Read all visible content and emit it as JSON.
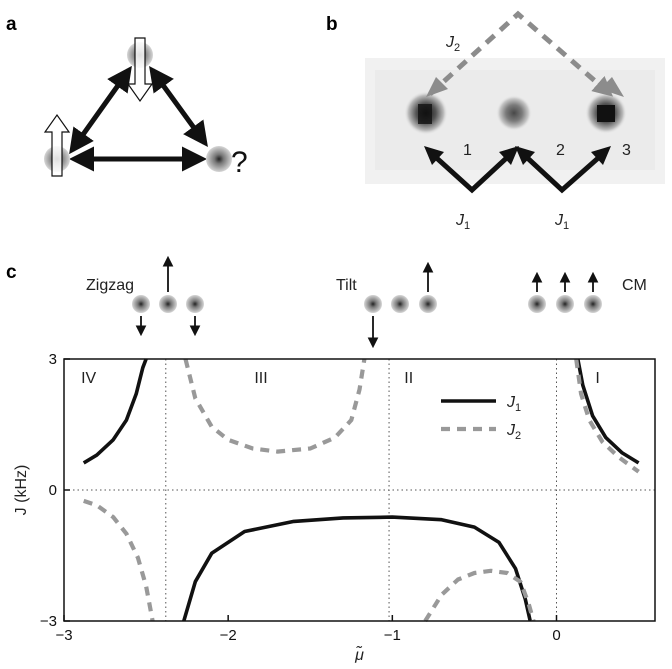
{
  "panels": {
    "a": {
      "letter": "a",
      "question": "?"
    },
    "b": {
      "letter": "b",
      "j2": "J",
      "j2_sub": "2",
      "site1": "1",
      "site2": "2",
      "site3": "3",
      "j1_left": "J",
      "j1_left_sub": "1",
      "j1_right": "J",
      "j1_right_sub": "1"
    },
    "c": {
      "letter": "c",
      "config_zigzag": "Zigzag",
      "config_tilt": "Tilt",
      "config_cm": "CM"
    }
  },
  "colors": {
    "j1_line": "#111111",
    "j2_line": "#999999",
    "ion": "#8a8a8a"
  },
  "chart_data": {
    "type": "line",
    "xlabel": "μ̃",
    "ylabel": "J (kHz)",
    "xlim": [
      -3,
      0.6
    ],
    "ylim": [
      -3,
      3
    ],
    "xticks": [
      "−3",
      "−2",
      "−1",
      "0"
    ],
    "xtick_values": [
      -3,
      -2,
      -1,
      0
    ],
    "yticks": [
      "−3",
      "0",
      "3"
    ],
    "ytick_values": [
      -3,
      0,
      3
    ],
    "regions": [
      {
        "label": "IV",
        "x": -2.85
      },
      {
        "label": "III",
        "x": -1.8
      },
      {
        "label": "II",
        "x": -0.9
      },
      {
        "label": "I",
        "x": 0.25
      }
    ],
    "dotted_vlines": [
      -2.38,
      -1.02,
      0
    ],
    "legend": [
      {
        "name": "J",
        "sub": "1",
        "style": "solid"
      },
      {
        "name": "J",
        "sub": "2",
        "style": "dashed"
      }
    ],
    "legend_position": "top-right",
    "series": [
      {
        "id": "J1",
        "name": "J1",
        "style": "solid",
        "segments": [
          [
            [
              -2.88,
              0.62
            ],
            [
              -2.8,
              0.8
            ],
            [
              -2.7,
              1.15
            ],
            [
              -2.62,
              1.6
            ],
            [
              -2.56,
              2.2
            ],
            [
              -2.52,
              2.8
            ],
            [
              -2.5,
              3.0
            ]
          ],
          [
            [
              -2.27,
              -3.0
            ],
            [
              -2.2,
              -2.1
            ],
            [
              -2.1,
              -1.45
            ],
            [
              -1.9,
              -0.95
            ],
            [
              -1.6,
              -0.72
            ],
            [
              -1.3,
              -0.64
            ],
            [
              -1.0,
              -0.62
            ],
            [
              -0.7,
              -0.68
            ],
            [
              -0.5,
              -0.85
            ],
            [
              -0.35,
              -1.2
            ],
            [
              -0.25,
              -1.8
            ],
            [
              -0.19,
              -2.5
            ],
            [
              -0.16,
              -3.0
            ]
          ],
          [
            [
              0.13,
              3.0
            ],
            [
              0.16,
              2.4
            ],
            [
              0.22,
              1.7
            ],
            [
              0.3,
              1.2
            ],
            [
              0.4,
              0.85
            ],
            [
              0.5,
              0.62
            ]
          ]
        ]
      },
      {
        "id": "J2",
        "name": "J2",
        "style": "dashed",
        "segments": [
          [
            [
              -2.88,
              -0.25
            ],
            [
              -2.8,
              -0.35
            ],
            [
              -2.7,
              -0.62
            ],
            [
              -2.62,
              -1.0
            ],
            [
              -2.55,
              -1.55
            ],
            [
              -2.5,
              -2.2
            ],
            [
              -2.47,
              -2.8
            ],
            [
              -2.46,
              -3.0
            ]
          ],
          [
            [
              -2.26,
              3.0
            ],
            [
              -2.2,
              2.1
            ],
            [
              -2.1,
              1.45
            ],
            [
              -2.0,
              1.15
            ],
            [
              -1.85,
              0.95
            ],
            [
              -1.7,
              0.88
            ],
            [
              -1.5,
              0.95
            ],
            [
              -1.35,
              1.2
            ],
            [
              -1.25,
              1.6
            ],
            [
              -1.2,
              2.3
            ],
            [
              -1.17,
              3.0
            ]
          ],
          [
            [
              -0.8,
              -3.0
            ],
            [
              -0.7,
              -2.4
            ],
            [
              -0.6,
              -2.05
            ],
            [
              -0.5,
              -1.9
            ],
            [
              -0.4,
              -1.85
            ],
            [
              -0.3,
              -1.9
            ],
            [
              -0.22,
              -2.1
            ],
            [
              -0.17,
              -2.6
            ],
            [
              -0.14,
              -3.0
            ]
          ],
          [
            [
              0.12,
              3.0
            ],
            [
              0.15,
              2.2
            ],
            [
              0.2,
              1.6
            ],
            [
              0.28,
              1.1
            ],
            [
              0.38,
              0.75
            ],
            [
              0.5,
              0.42
            ]
          ]
        ]
      }
    ]
  }
}
